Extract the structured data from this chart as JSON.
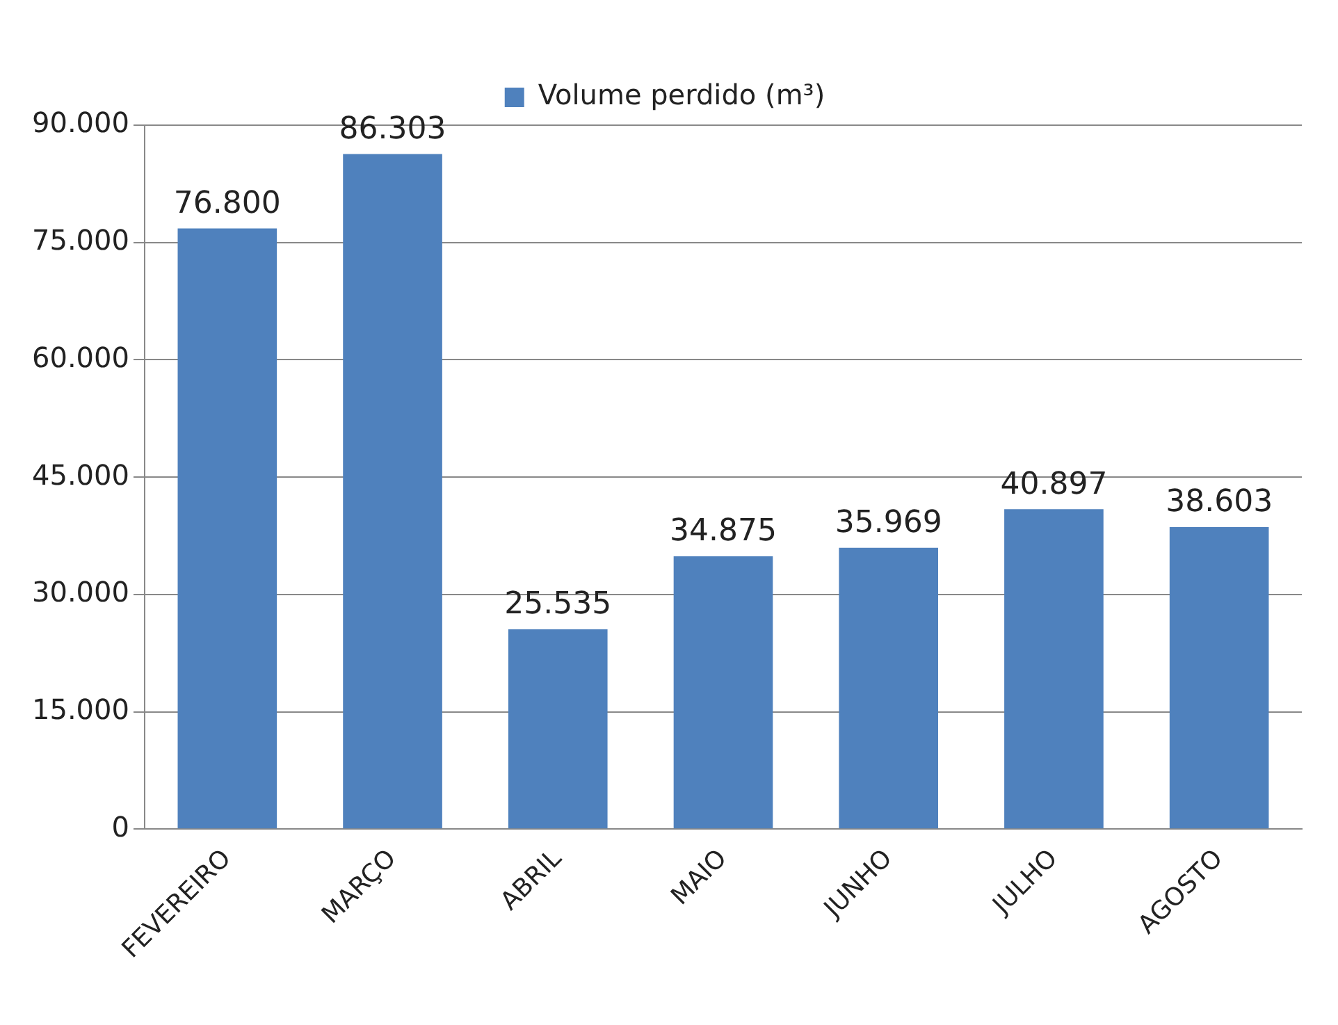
{
  "chart_data": {
    "type": "bar",
    "categories": [
      "FEVEREIRO",
      "MARÇO",
      "ABRIL",
      "MAIO",
      "JUNHO",
      "JULHO",
      "AGOSTO"
    ],
    "series": [
      {
        "name": "Volume perdido (m³)",
        "color": "#4f81bd",
        "values": [
          76800,
          86303,
          25535,
          34875,
          35969,
          40897,
          38603
        ],
        "value_labels": [
          "76.800",
          "86.303",
          "25.535",
          "34.875",
          "35.969",
          "40.897",
          "38.603"
        ]
      }
    ],
    "ylim": [
      0,
      90000
    ],
    "yticks": [
      {
        "value": 0,
        "label": "0"
      },
      {
        "value": 15000,
        "label": "15.000"
      },
      {
        "value": 30000,
        "label": "30.000"
      },
      {
        "value": 45000,
        "label": "45.000"
      },
      {
        "value": 60000,
        "label": "60.000"
      },
      {
        "value": 75000,
        "label": "75.000"
      },
      {
        "value": 90000,
        "label": "90.000"
      }
    ],
    "grid": "y",
    "legend": "top"
  }
}
